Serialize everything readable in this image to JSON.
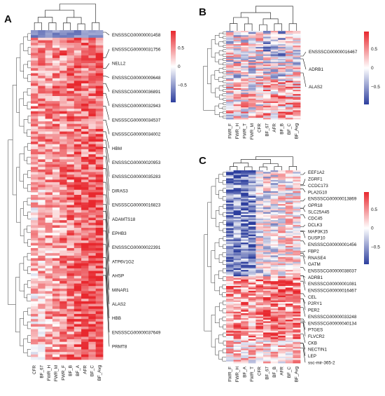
{
  "panels": [
    {
      "letter": "A",
      "columns": [
        "CFR",
        "BF_67",
        "FWR_H",
        "FWR_M",
        "FWR_F",
        "BF_B",
        "BF_A",
        "AFR",
        "BF_C",
        "BF_Avg"
      ],
      "genes": [
        "ENSSSCG00000001458",
        "ENSSSCG00000031756",
        "NELL2",
        "ENSSSCG00000009648",
        "ENSSSCG00000036891",
        "ENSSSCG00000032943",
        "ENSSSCG00000034537",
        "ENSSSCG00000034002",
        "HBM",
        "ENSSSCG00000020953",
        "ENSSSCG00000035283",
        "DIRAS3",
        "ENSSSCG00000016823",
        "ADAMTS18",
        "EPHB3",
        "ENSSSCG00000022391",
        "ATP6V1G2",
        "AHSP",
        "MINAR1",
        "ALAS2",
        "HBB",
        "ENSSSCG00000037649",
        "PRMT8"
      ],
      "colorbar_ticks": [
        "0.5",
        "0",
        "−0.5"
      ]
    },
    {
      "letter": "B",
      "columns": [
        "FWR_F",
        "FWR_H",
        "FWR_T",
        "FWR_M",
        "CFR",
        "BF_67",
        "AFR",
        "BF_B",
        "BF_C",
        "BF_Avg"
      ],
      "genes": [
        "ENSSSCG00000016467",
        "ADRB1",
        "ALAS2"
      ],
      "colorbar_ticks": [
        "0.5",
        "0",
        "−0.5"
      ]
    },
    {
      "letter": "C",
      "columns": [
        "FWR_F",
        "FWR_H",
        "BF_A",
        "FWR_T",
        "CFR",
        "BF_67",
        "BF_B",
        "AFR",
        "BF_C",
        "BF_Avg"
      ],
      "genes": [
        "EEF1A2",
        "ZGRF1",
        "CCDC173",
        "PLA2G10",
        "ENSSSCG00000013869",
        "GPR18",
        "SLC25A45",
        "CDC45",
        "DCLK3",
        "MAP3K15",
        "DUSP10",
        "ENSSSCG00000001456",
        "FBP2",
        "RNASE4",
        "GATM",
        "ENSSSCG00000038037",
        "ADRB1",
        "ENSSSCG00000001081",
        "ENSSSCG00000016467",
        "CEL",
        "P2RY1",
        "PER2",
        "ENSSSCG00000033248",
        "ENSSSCG00000040134",
        "PTGES",
        "FLVCR2",
        "CKB",
        "NECTIN1",
        "LEP",
        "ssc-mir-365-2"
      ],
      "colorbar_ticks": [
        "0.5",
        "0",
        "−0.5"
      ]
    }
  ],
  "colors": {
    "high": "#e8282e",
    "mid": "#ffffff",
    "low": "#2d3f9e"
  }
}
